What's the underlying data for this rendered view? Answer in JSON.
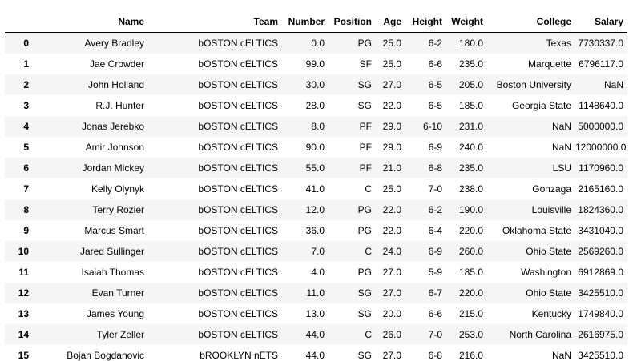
{
  "table": {
    "index_header": "",
    "columns": [
      "Name",
      "Team",
      "Number",
      "Position",
      "Age",
      "Height",
      "Weight",
      "College",
      "Salary"
    ],
    "rows": [
      {
        "index": "0",
        "cells": [
          "Avery Bradley",
          "bOSTON cELTICS",
          "0.0",
          "PG",
          "25.0",
          "6-2",
          "180.0",
          "Texas",
          "7730337.0"
        ]
      },
      {
        "index": "1",
        "cells": [
          "Jae Crowder",
          "bOSTON cELTICS",
          "99.0",
          "SF",
          "25.0",
          "6-6",
          "235.0",
          "Marquette",
          "6796117.0"
        ]
      },
      {
        "index": "2",
        "cells": [
          "John Holland",
          "bOSTON cELTICS",
          "30.0",
          "SG",
          "27.0",
          "6-5",
          "205.0",
          "Boston University",
          "NaN"
        ]
      },
      {
        "index": "3",
        "cells": [
          "R.J. Hunter",
          "bOSTON cELTICS",
          "28.0",
          "SG",
          "22.0",
          "6-5",
          "185.0",
          "Georgia State",
          "1148640.0"
        ]
      },
      {
        "index": "4",
        "cells": [
          "Jonas Jerebko",
          "bOSTON cELTICS",
          "8.0",
          "PF",
          "29.0",
          "6-10",
          "231.0",
          "NaN",
          "5000000.0"
        ]
      },
      {
        "index": "5",
        "cells": [
          "Amir Johnson",
          "bOSTON cELTICS",
          "90.0",
          "PF",
          "29.0",
          "6-9",
          "240.0",
          "NaN",
          "12000000.0"
        ]
      },
      {
        "index": "6",
        "cells": [
          "Jordan Mickey",
          "bOSTON cELTICS",
          "55.0",
          "PF",
          "21.0",
          "6-8",
          "235.0",
          "LSU",
          "1170960.0"
        ]
      },
      {
        "index": "7",
        "cells": [
          "Kelly Olynyk",
          "bOSTON cELTICS",
          "41.0",
          "C",
          "25.0",
          "7-0",
          "238.0",
          "Gonzaga",
          "2165160.0"
        ]
      },
      {
        "index": "8",
        "cells": [
          "Terry Rozier",
          "bOSTON cELTICS",
          "12.0",
          "PG",
          "22.0",
          "6-2",
          "190.0",
          "Louisville",
          "1824360.0"
        ]
      },
      {
        "index": "9",
        "cells": [
          "Marcus Smart",
          "bOSTON cELTICS",
          "36.0",
          "PG",
          "22.0",
          "6-4",
          "220.0",
          "Oklahoma State",
          "3431040.0"
        ]
      },
      {
        "index": "10",
        "cells": [
          "Jared Sullinger",
          "bOSTON cELTICS",
          "7.0",
          "C",
          "24.0",
          "6-9",
          "260.0",
          "Ohio State",
          "2569260.0"
        ]
      },
      {
        "index": "11",
        "cells": [
          "Isaiah Thomas",
          "bOSTON cELTICS",
          "4.0",
          "PG",
          "27.0",
          "5-9",
          "185.0",
          "Washington",
          "6912869.0"
        ]
      },
      {
        "index": "12",
        "cells": [
          "Evan Turner",
          "bOSTON cELTICS",
          "11.0",
          "SG",
          "27.0",
          "6-7",
          "220.0",
          "Ohio State",
          "3425510.0"
        ]
      },
      {
        "index": "13",
        "cells": [
          "James Young",
          "bOSTON cELTICS",
          "13.0",
          "SG",
          "20.0",
          "6-6",
          "215.0",
          "Kentucky",
          "1749840.0"
        ]
      },
      {
        "index": "14",
        "cells": [
          "Tyler Zeller",
          "bOSTON cELTICS",
          "44.0",
          "C",
          "26.0",
          "7-0",
          "253.0",
          "North Carolina",
          "2616975.0"
        ]
      },
      {
        "index": "15",
        "cells": [
          "Bojan Bogdanovic",
          "bROOKLYN nETS",
          "44.0",
          "SG",
          "27.0",
          "6-8",
          "216.0",
          "NaN",
          "3425510.0"
        ]
      }
    ]
  }
}
